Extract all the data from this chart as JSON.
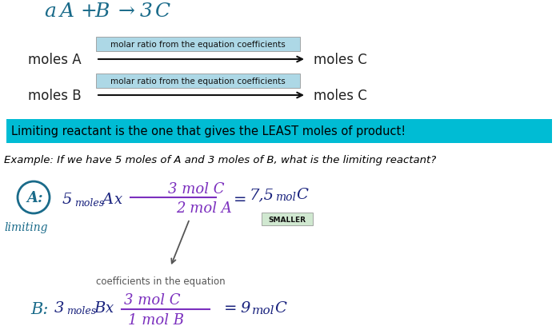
{
  "bg_color": "#ffffff",
  "row1_label": "molar ratio from the equation coefficients",
  "row1_label_bg": "#add8e6",
  "row2_label": "molar ratio from the equation coefficients",
  "row2_label_bg": "#add8e6",
  "highlight_text": "Limiting reactant is the one that gives the LEAST moles of product!",
  "highlight_bg": "#00bcd4",
  "highlight_color": "#000000",
  "example_text": "Example: If we have 5 moles of A and 3 moles of B, what is the limiting reactant?",
  "circled_A_color": "#1a6b8a",
  "handwritten_color_purple": "#7b2fbe",
  "handwritten_color_teal": "#1a6b8a",
  "handwritten_color_dark": "#1a237e",
  "handwritten_color_black": "#2a2a2a",
  "smaller_bg": "#d0e8d0",
  "smaller_border": "#888888",
  "coefficients_note": "coefficients in the equation",
  "arrow_color": "#111111",
  "top_eq_color": "#1a6b8a",
  "row_text_color": "#222222"
}
